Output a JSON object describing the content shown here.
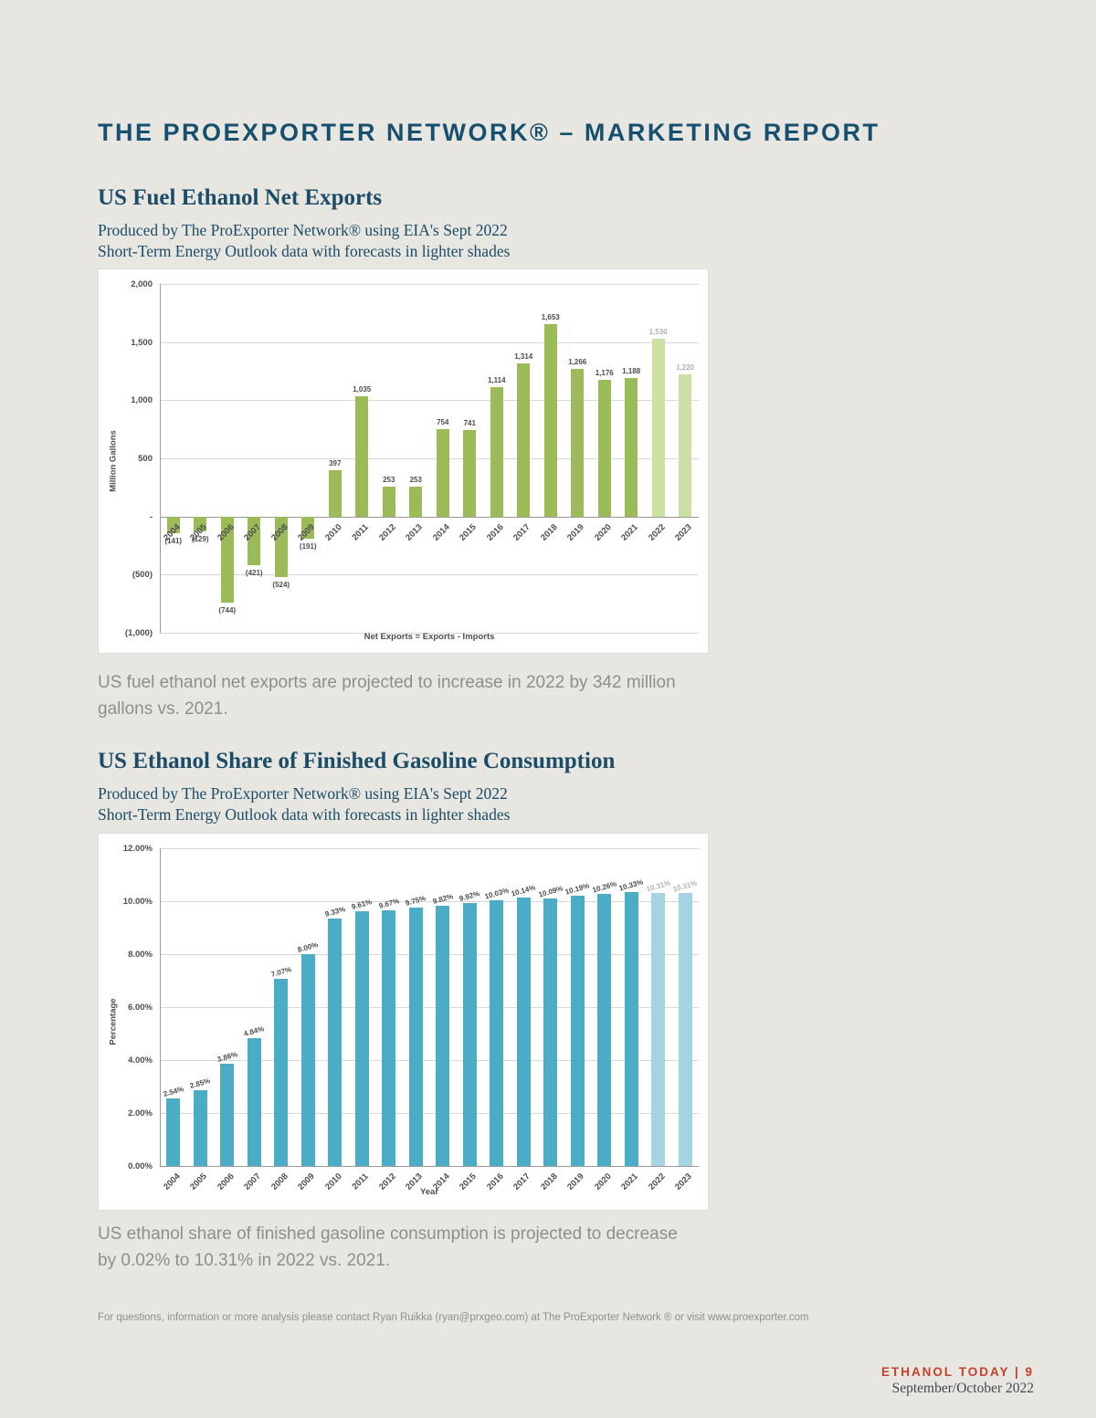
{
  "header": {
    "title": "THE PROEXPORTER NETWORK® – MARKETING REPORT"
  },
  "section1": {
    "title": "US Fuel Ethanol Net Exports",
    "subtitle_line1": "Produced by The ProExporter Network® using EIA's Sept 2022",
    "subtitle_line2": "Short-Term Energy Outlook data with forecasts in lighter shades",
    "caption": "US fuel ethanol net exports are projected to increase in 2022 by 342 million gallons vs. 2021."
  },
  "section2": {
    "title": "US Ethanol Share of Finished Gasoline Consumption",
    "subtitle_line1": "Produced by The ProExporter Network® using EIA's Sept 2022",
    "subtitle_line2": "Short-Term Energy Outlook data with forecasts in lighter shades",
    "caption": "US ethanol share of finished gasoline consumption is projected to decrease by 0.02% to 10.31% in 2022 vs. 2021."
  },
  "footer": {
    "contact": "For questions, information or more analysis please contact Ryan Ruikka (ryan@prxgeo.com) at The ProExporter Network ® or visit www.proexporter.com",
    "magazine": "ETHANOL TODAY | 9",
    "issue": "September/October 2022"
  },
  "chart_data": [
    {
      "type": "bar",
      "title": "US Fuel Ethanol Net Exports",
      "categories": [
        "2004",
        "2005",
        "2006",
        "2007",
        "2008",
        "2009",
        "2010",
        "2011",
        "2012",
        "2013",
        "2014",
        "2015",
        "2016",
        "2017",
        "2018",
        "2019",
        "2020",
        "2021",
        "2022",
        "2023"
      ],
      "values": [
        -141,
        -129,
        -744,
        -421,
        -524,
        -191,
        397,
        1035,
        253,
        253,
        754,
        741,
        1114,
        1314,
        1653,
        1266,
        1176,
        1188,
        1530,
        1220
      ],
      "value_labels": [
        "(141)",
        "(129)",
        "(744)",
        "(421)",
        "(524)",
        "(191)",
        "397",
        "1,035",
        "253",
        "253",
        "754",
        "741",
        "1,114",
        "1,314",
        "1,653",
        "1,266",
        "1,176",
        "1,188",
        "1,530",
        "1,220"
      ],
      "forecast_count": 2,
      "forecast_note": "2022 and 2023 are forecasts shown in lighter shade",
      "ylabel": "Million Gallons",
      "xlabel": "Net Exports = Exports - Imports",
      "ylim": [
        -1000,
        2000
      ],
      "ytick_step": 500,
      "ytick_labels": [
        "2,000",
        "1,500",
        "1,000",
        "500",
        "-",
        "(500)",
        "(1,000)"
      ],
      "bar_color": "#9bbb59",
      "forecast_color": "#cde0a4",
      "grid": true,
      "legend": "none"
    },
    {
      "type": "bar",
      "title": "US Ethanol Share of Finished Gasoline Consumption",
      "categories": [
        "2004",
        "2005",
        "2006",
        "2007",
        "2008",
        "2009",
        "2010",
        "2011",
        "2012",
        "2013",
        "2014",
        "2015",
        "2016",
        "2017",
        "2018",
        "2019",
        "2020",
        "2021",
        "2022",
        "2023"
      ],
      "values": [
        2.54,
        2.85,
        3.86,
        4.84,
        7.07,
        8.0,
        9.33,
        9.61,
        9.67,
        9.75,
        9.82,
        9.92,
        10.03,
        10.14,
        10.09,
        10.19,
        10.26,
        10.33,
        10.31,
        10.31
      ],
      "value_labels": [
        "2.54%",
        "2.85%",
        "3.86%",
        "4.84%",
        "7.07%",
        "8.00%",
        "9.33%",
        "9.61%",
        "9.67%",
        "9.75%",
        "9.82%",
        "9.92%",
        "10.03%",
        "10.14%",
        "10.09%",
        "10.19%",
        "10.26%",
        "10.33%",
        "10.31%",
        "10.31%"
      ],
      "forecast_count": 2,
      "forecast_note": "2022 and 2023 are forecasts shown in lighter shade",
      "ylabel": "Percentage",
      "xlabel": "Year",
      "ylim": [
        0,
        12
      ],
      "ytick_step": 2,
      "ytick_labels": [
        "12.00%",
        "10.00%",
        "8.00%",
        "6.00%",
        "4.00%",
        "2.00%",
        "0.00%"
      ],
      "bar_color": "#4bacc6",
      "forecast_color": "#a4d3e2",
      "grid": true,
      "legend": "none"
    }
  ]
}
